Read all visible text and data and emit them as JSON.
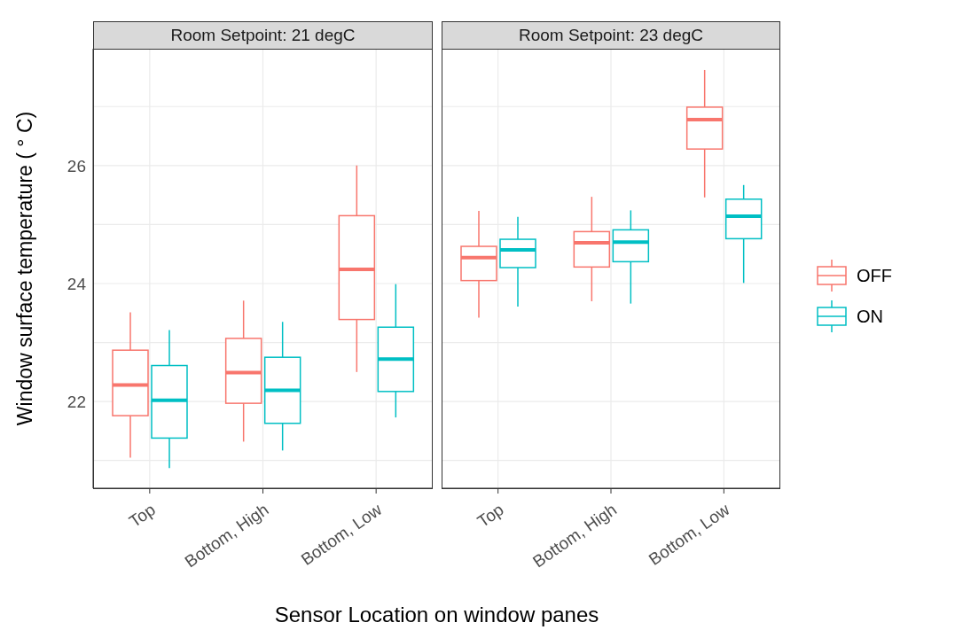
{
  "chart_data": [
    {
      "type": "box",
      "title": "Room Setpoint: 21 degC",
      "xlabel": "Sensor Location on window panes",
      "ylabel": "Window surface temperature ( ° C)",
      "categories": [
        "Top",
        "Bottom, High",
        "Bottom, Low"
      ],
      "ylim": [
        20.53,
        27.98
      ],
      "yticks": [
        {
          "value": 21,
          "label": null
        },
        22,
        {
          "value": 23,
          "label": null
        },
        24,
        {
          "value": 25,
          "label": null
        },
        26,
        {
          "value": 27,
          "label": null
        }
      ],
      "grid": true,
      "legend": "right",
      "series": [
        {
          "name": "OFF",
          "color": "#f8766d",
          "boxes": [
            {
              "low": 21.05,
              "q1": 21.76,
              "median": 22.28,
              "q3": 22.87,
              "high": 23.51
            },
            {
              "low": 21.32,
              "q1": 21.97,
              "median": 22.49,
              "q3": 23.07,
              "high": 23.71
            },
            {
              "low": 22.5,
              "q1": 23.39,
              "median": 24.24,
              "q3": 25.15,
              "high": 26.0
            }
          ]
        },
        {
          "name": "ON",
          "color": "#00bfc4",
          "boxes": [
            {
              "low": 20.87,
              "q1": 21.38,
              "median": 22.02,
              "q3": 22.61,
              "high": 23.21
            },
            {
              "low": 21.17,
              "q1": 21.63,
              "median": 22.19,
              "q3": 22.75,
              "high": 23.35
            },
            {
              "low": 21.73,
              "q1": 22.17,
              "median": 22.72,
              "q3": 23.26,
              "high": 23.99
            }
          ]
        }
      ]
    },
    {
      "type": "box",
      "title": "Room Setpoint: 23 degC",
      "categories": [
        "Top",
        "Bottom, High",
        "Bottom, Low"
      ],
      "ylim": [
        20.53,
        27.98
      ],
      "yticks": [
        {
          "value": 21,
          "label": null
        },
        22,
        {
          "value": 23,
          "label": null
        },
        24,
        {
          "value": 25,
          "label": null
        },
        26,
        {
          "value": 27,
          "label": null
        }
      ],
      "grid": true,
      "tick_labels": "x",
      "series": [
        {
          "color": "#f8766d",
          "boxes": [
            {
              "low": 23.42,
              "q1": 24.05,
              "median": 24.44,
              "q3": 24.63,
              "high": 25.23
            },
            {
              "low": 23.7,
              "q1": 24.28,
              "median": 24.69,
              "q3": 24.88,
              "high": 25.47
            },
            {
              "low": 25.46,
              "q1": 26.28,
              "median": 26.78,
              "q3": 26.99,
              "high": 27.62
            }
          ]
        },
        {
          "color": "#00bfc4",
          "boxes": [
            {
              "low": 23.61,
              "q1": 24.27,
              "median": 24.57,
              "q3": 24.75,
              "high": 25.13
            },
            {
              "low": 23.66,
              "q1": 24.37,
              "median": 24.7,
              "q3": 24.91,
              "high": 25.24
            },
            {
              "low": 24.01,
              "q1": 24.76,
              "median": 25.14,
              "q3": 25.43,
              "high": 25.67
            }
          ]
        }
      ]
    }
  ]
}
